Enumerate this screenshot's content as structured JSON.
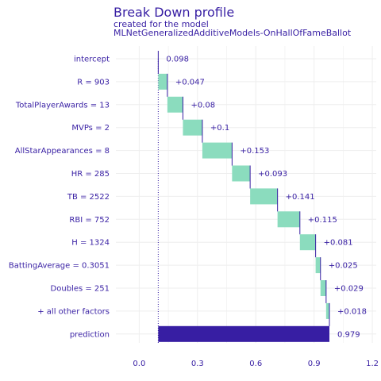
{
  "colors": {
    "text": "#371ea3",
    "positive": "#8bdcbe",
    "prediction": "#371ea3",
    "connector": "#371ea3",
    "grid": "#eeeeee",
    "baseline": "#371ea3"
  },
  "chart_data": {
    "type": "waterfall",
    "title": "Break Down profile",
    "subtitle_line1": "created for the  model",
    "subtitle_line2": "MLNetGeneralizedAdditiveModels-OnHallOfFameBallot",
    "xlim": [
      -0.12,
      1.22
    ],
    "x_ticks": [
      0.0,
      0.3,
      0.6,
      0.9,
      1.2
    ],
    "x_tick_labels": [
      "0.0",
      "0.3",
      "0.6",
      "0.9",
      "1.2"
    ],
    "grid": true,
    "baseline": 0.098,
    "rows": [
      {
        "label": "intercept",
        "start": 0.098,
        "end": 0.098,
        "value_label": "0.098",
        "kind": "intercept"
      },
      {
        "label": "R = 903",
        "start": 0.098,
        "end": 0.145,
        "value_label": "+0.047",
        "kind": "positive"
      },
      {
        "label": "TotalPlayerAwards = 13",
        "start": 0.145,
        "end": 0.225,
        "value_label": "+0.08",
        "kind": "positive"
      },
      {
        "label": "MVPs = 2",
        "start": 0.225,
        "end": 0.325,
        "value_label": "+0.1",
        "kind": "positive"
      },
      {
        "label": "AllStarAppearances = 8",
        "start": 0.325,
        "end": 0.478,
        "value_label": "+0.153",
        "kind": "positive"
      },
      {
        "label": "HR = 285",
        "start": 0.478,
        "end": 0.571,
        "value_label": "+0.093",
        "kind": "positive"
      },
      {
        "label": "TB = 2522",
        "start": 0.571,
        "end": 0.712,
        "value_label": "+0.141",
        "kind": "positive"
      },
      {
        "label": "RBI = 752",
        "start": 0.712,
        "end": 0.827,
        "value_label": "+0.115",
        "kind": "positive"
      },
      {
        "label": "H = 1324",
        "start": 0.827,
        "end": 0.908,
        "value_label": "+0.081",
        "kind": "positive"
      },
      {
        "label": "BattingAverage = 0.3051",
        "start": 0.908,
        "end": 0.933,
        "value_label": "+0.025",
        "kind": "positive"
      },
      {
        "label": "Doubles = 251",
        "start": 0.933,
        "end": 0.962,
        "value_label": "+0.029",
        "kind": "positive"
      },
      {
        "label": "+ all other factors",
        "start": 0.962,
        "end": 0.979,
        "value_label": "+0.018",
        "kind": "positive"
      },
      {
        "label": "prediction",
        "start": 0.098,
        "end": 0.979,
        "value_label": "0.979",
        "kind": "prediction"
      }
    ]
  }
}
